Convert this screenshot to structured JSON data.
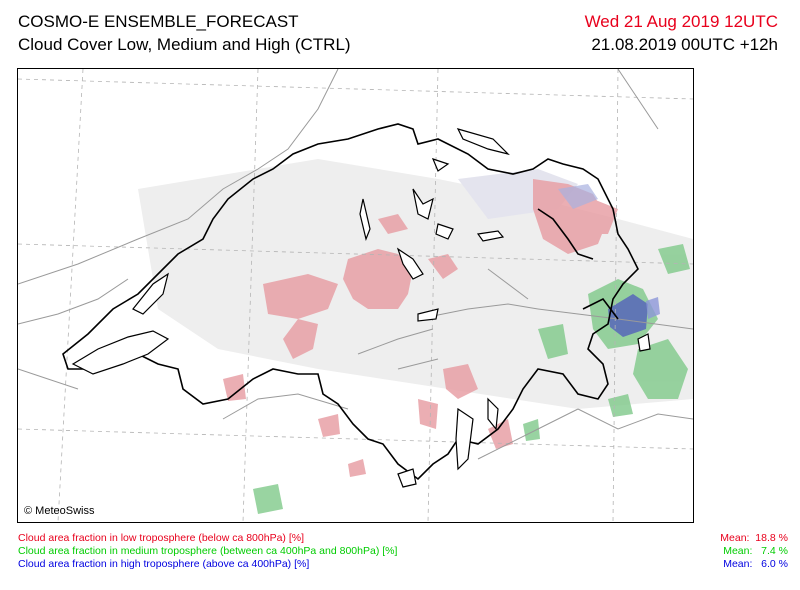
{
  "header": {
    "title_line1": "COSMO-E ENSEMBLE_FORECAST",
    "title_line2": "Cloud Cover Low, Medium and High (CTRL)",
    "valid_time": "Wed 21 Aug 2019 12UTC",
    "run_time": "21.08.2019 00UTC +12h"
  },
  "map": {
    "copyright": "© MeteoSwiss"
  },
  "legend": [
    {
      "label": "Cloud area fraction in low troposphere (below ca 800hPa) [%]",
      "mean": "Mean:  18.8 %",
      "color": "#e8001c"
    },
    {
      "label": "Cloud area fraction in medium troposphere (between ca 400hPa and 800hPa) [%]",
      "mean": "Mean:   7.4 %",
      "color": "#00cc00"
    },
    {
      "label": "Cloud area fraction in high troposphere (above ca 400hPa) [%]",
      "mean": "Mean:   6.0 %",
      "color": "#0000e0"
    }
  ],
  "colors": {
    "low_cloud": "#e8a0a6",
    "medium_cloud": "#7fc98a",
    "high_cloud": "#5a6bb8",
    "border": "#000000",
    "grid": "#b4b4b4"
  }
}
